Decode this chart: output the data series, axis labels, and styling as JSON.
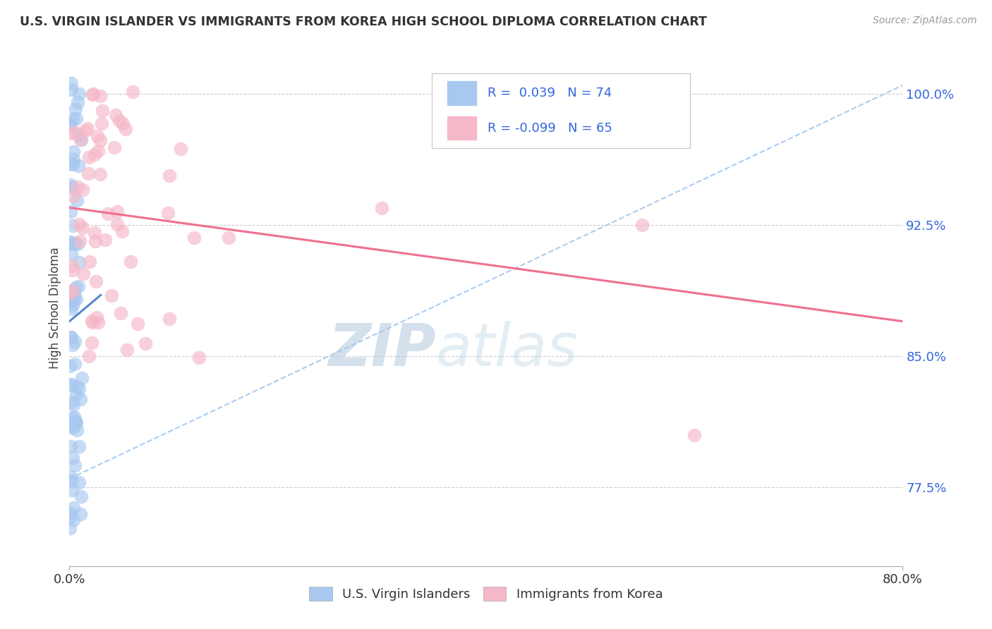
{
  "title": "U.S. VIRGIN ISLANDER VS IMMIGRANTS FROM KOREA HIGH SCHOOL DIPLOMA CORRELATION CHART",
  "source": "Source: ZipAtlas.com",
  "ylabel": "High School Diploma",
  "yticks": [
    100.0,
    92.5,
    85.0,
    77.5
  ],
  "xmin": 0.0,
  "xmax": 80.0,
  "ymin": 73.0,
  "ymax": 102.5,
  "legend_blue_label": "U.S. Virgin Islanders",
  "legend_pink_label": "Immigrants from Korea",
  "R_blue": 0.039,
  "N_blue": 74,
  "R_pink": -0.099,
  "N_pink": 65,
  "blue_color": "#A8C8F0",
  "pink_color": "#F5B8C8",
  "trend_blue_color": "#5588CC",
  "trend_pink_color": "#EE7090",
  "dashed_line_color": "#AACCEE",
  "watermark_zip_color": "#C8D8E8",
  "watermark_atlas_color": "#D8E8F0",
  "background_color": "#FFFFFF",
  "blue_trend_x0": 0.0,
  "blue_trend_x1": 3.0,
  "blue_trend_y0": 87.0,
  "blue_trend_y1": 88.5,
  "pink_trend_x0": 0.0,
  "pink_trend_x1": 80.0,
  "pink_trend_y0": 93.5,
  "pink_trend_y1": 87.0,
  "dash_x0": 0.0,
  "dash_x1": 80.0,
  "dash_y0": 78.0,
  "dash_y1": 100.5
}
